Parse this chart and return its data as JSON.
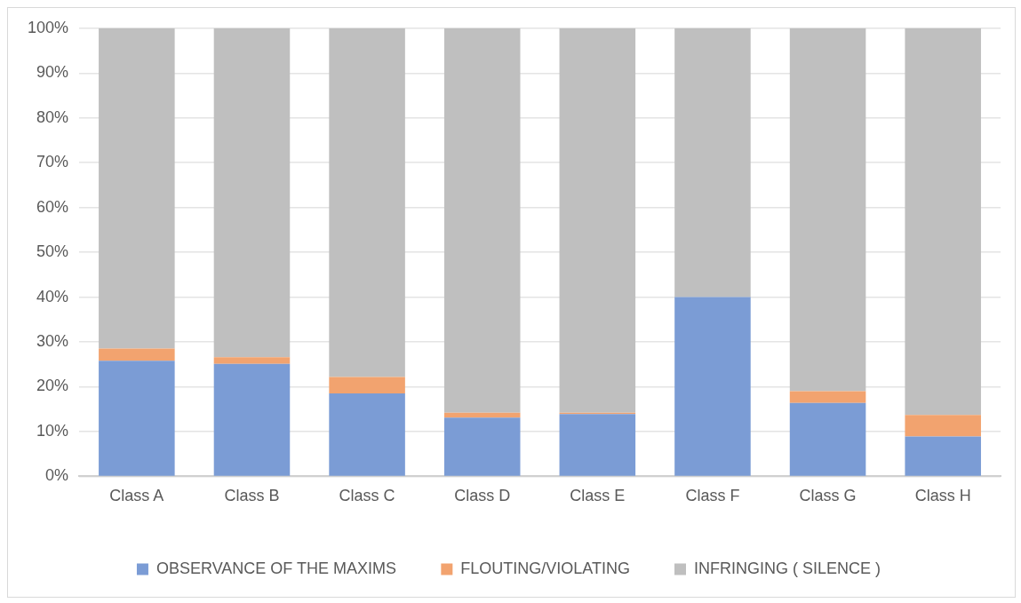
{
  "chart_data": {
    "type": "bar",
    "stacked": true,
    "categories": [
      "Class A",
      "Class B",
      "Class C",
      "Class D",
      "Class E",
      "Class F",
      "Class G",
      "Class H"
    ],
    "series": [
      {
        "name": "OBSERVANCE OF THE MAXIMS",
        "color": "#7b9cd5",
        "values": [
          25.8,
          25.1,
          18.5,
          13.1,
          13.9,
          40,
          16.4,
          8.9
        ]
      },
      {
        "name": "FLOUTING/VIOLATING",
        "color": "#f2a36f",
        "values": [
          2.7,
          1.5,
          3.7,
          1.1,
          0.3,
          0,
          2.6,
          4.8
        ]
      },
      {
        "name": "INFRINGING ( SILENCE )",
        "color": "#bfbfbf",
        "values": [
          71.5,
          73.4,
          77.8,
          85.8,
          85.8,
          60,
          81,
          86.3
        ]
      }
    ],
    "ylim": [
      0,
      100
    ],
    "yticks": [
      {
        "value": 0,
        "label": "0%"
      },
      {
        "value": 10,
        "label": "10%"
      },
      {
        "value": 20,
        "label": "20%"
      },
      {
        "value": 30,
        "label": "30%"
      },
      {
        "value": 40,
        "label": "40%"
      },
      {
        "value": 50,
        "label": "50%"
      },
      {
        "value": 60,
        "label": "60%"
      },
      {
        "value": 70,
        "label": "70%"
      },
      {
        "value": 80,
        "label": "80%"
      },
      {
        "value": 90,
        "label": "90%"
      },
      {
        "value": 100,
        "label": "100%"
      }
    ],
    "grid": "y",
    "legend": "bottom"
  }
}
